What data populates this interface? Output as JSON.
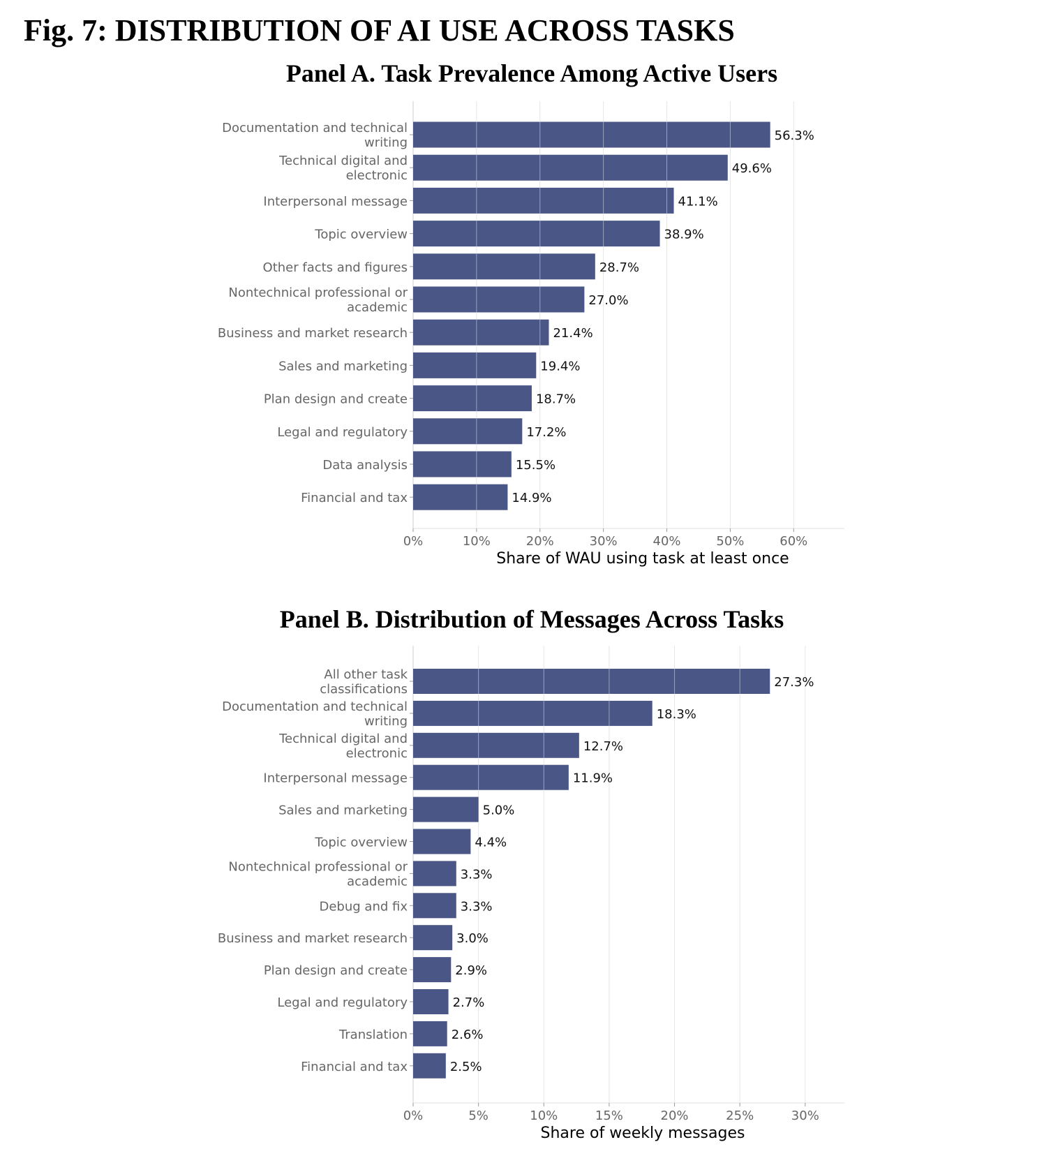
{
  "figure": {
    "title": "Fig. 7: DISTRIBUTION OF AI USE ACROSS TASKS"
  },
  "colors": {
    "bar": "#4a5686",
    "grid": "#e6e6e6",
    "category_text": "#666666",
    "value_text": "#111111"
  },
  "chart_data": [
    {
      "type": "bar",
      "orientation": "horizontal",
      "title": "Panel A. Task Prevalence Among Active Users",
      "xlabel": "Share of WAU using task at least once",
      "ylabel": "",
      "xlim": [
        0,
        68
      ],
      "xticks": [
        0,
        10,
        20,
        30,
        40,
        50,
        60
      ],
      "xtick_labels": [
        "0%",
        "10%",
        "20%",
        "30%",
        "40%",
        "50%",
        "60%"
      ],
      "grid": "vertical",
      "categories": [
        "Documentation and technical writing",
        "Technical digital and electronic",
        "Interpersonal message",
        "Topic overview",
        "Other facts and figures",
        "Nontechnical professional or academic",
        "Business and market research",
        "Sales and marketing",
        "Plan design and create",
        "Legal and regulatory",
        "Data analysis",
        "Financial and tax"
      ],
      "category_lines": [
        [
          "Documentation and technical",
          "writing"
        ],
        [
          "Technical digital and",
          "electronic"
        ],
        [
          "Interpersonal message"
        ],
        [
          "Topic overview"
        ],
        [
          "Other facts and figures"
        ],
        [
          "Nontechnical professional or",
          "academic"
        ],
        [
          "Business and market research"
        ],
        [
          "Sales and marketing"
        ],
        [
          "Plan design and create"
        ],
        [
          "Legal and regulatory"
        ],
        [
          "Data analysis"
        ],
        [
          "Financial and tax"
        ]
      ],
      "values": [
        56.3,
        49.6,
        41.1,
        38.9,
        28.7,
        27.0,
        21.4,
        19.4,
        18.7,
        17.2,
        15.5,
        14.9
      ],
      "value_labels": [
        "56.3%",
        "49.6%",
        "41.1%",
        "38.9%",
        "28.7%",
        "27.0%",
        "21.4%",
        "19.4%",
        "18.7%",
        "17.2%",
        "15.5%",
        "14.9%"
      ]
    },
    {
      "type": "bar",
      "orientation": "horizontal",
      "title": "Panel B. Distribution of Messages Across Tasks",
      "xlabel": "Share of weekly messages",
      "ylabel": "",
      "xlim": [
        0,
        33
      ],
      "xticks": [
        0,
        5,
        10,
        15,
        20,
        25,
        30
      ],
      "xtick_labels": [
        "0%",
        "5%",
        "10%",
        "15%",
        "20%",
        "25%",
        "30%"
      ],
      "grid": "vertical",
      "categories": [
        "All other task classifications",
        "Documentation and technical writing",
        "Technical digital and electronic",
        "Interpersonal message",
        "Sales and marketing",
        "Topic overview",
        "Nontechnical professional or academic",
        "Debug and fix",
        "Business and market research",
        "Plan design and create",
        "Legal and regulatory",
        "Translation",
        "Financial and tax"
      ],
      "category_lines": [
        [
          "All other task",
          "classifications"
        ],
        [
          "Documentation and technical",
          "writing"
        ],
        [
          "Technical digital and",
          "electronic"
        ],
        [
          "Interpersonal message"
        ],
        [
          "Sales and marketing"
        ],
        [
          "Topic overview"
        ],
        [
          "Nontechnical professional or",
          "academic"
        ],
        [
          "Debug and fix"
        ],
        [
          "Business and market research"
        ],
        [
          "Plan design and create"
        ],
        [
          "Legal and regulatory"
        ],
        [
          "Translation"
        ],
        [
          "Financial and tax"
        ]
      ],
      "values": [
        27.3,
        18.3,
        12.7,
        11.9,
        5.0,
        4.4,
        3.3,
        3.3,
        3.0,
        2.9,
        2.7,
        2.6,
        2.5
      ],
      "value_labels": [
        "27.3%",
        "18.3%",
        "12.7%",
        "11.9%",
        "5.0%",
        "4.4%",
        "3.3%",
        "3.3%",
        "3.0%",
        "2.9%",
        "2.7%",
        "2.6%",
        "2.5%"
      ]
    }
  ]
}
